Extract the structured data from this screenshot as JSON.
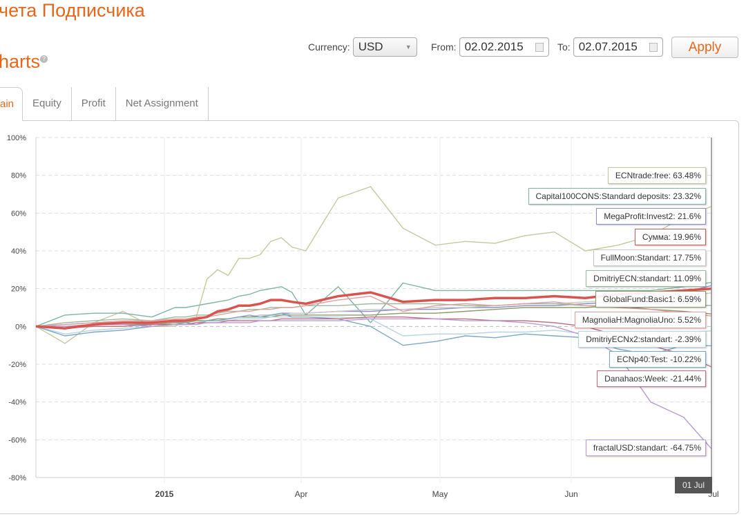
{
  "header": {
    "title": "чета Подписчика",
    "subtitle": "harts",
    "help_icon": "?"
  },
  "controls": {
    "currency_label": "Currency:",
    "currency_value": "USD",
    "from_label": "From:",
    "from_value": "02.02.2015",
    "to_label": "To:",
    "to_value": "02.07.2015",
    "apply_label": "Apply"
  },
  "tabs": [
    {
      "label": "ain",
      "active": true
    },
    {
      "label": "Equity"
    },
    {
      "label": "Profit"
    },
    {
      "label": "Net Assignment"
    }
  ],
  "tooltip": {
    "date": "01 Jul"
  },
  "colors": {
    "accent": "#e8661a"
  },
  "chart_data": {
    "type": "line",
    "ylim": [
      -80,
      100
    ],
    "y_ticks": [
      "100%",
      "80%",
      "60%",
      "40%",
      "20%",
      "0%",
      "-20%",
      "-40%",
      "-60%",
      "-80%"
    ],
    "x_ticks": [
      "2015",
      "Apr",
      "May",
      "Jun",
      "Jul"
    ],
    "grid": true,
    "legend_placement": "right",
    "x": [
      "2014-12-01",
      "2014-12-08",
      "2014-12-15",
      "2014-12-22",
      "2014-12-29",
      "2015-01-08",
      "2015-01-15",
      "2015-01-22",
      "2015-01-29",
      "2015-02-05",
      "2015-02-12",
      "2015-02-19",
      "2015-02-26",
      "2015-03-05",
      "2015-03-12",
      "2015-03-19",
      "2015-03-26",
      "2015-04-02",
      "2015-04-09",
      "2015-04-16",
      "2015-04-23",
      "2015-04-30",
      "2015-05-07",
      "2015-05-14",
      "2015-05-21",
      "2015-05-28",
      "2015-06-04",
      "2015-06-11",
      "2015-06-18",
      "2015-06-25",
      "2015-07-01"
    ],
    "series": [
      {
        "name": "ECNtrade:free",
        "label": "ECNtrade:free: 63.48%",
        "color": "#c5c79f",
        "values": [
          0,
          -9,
          2,
          8,
          0,
          0,
          3,
          5,
          25,
          30,
          27,
          36,
          36,
          38,
          45,
          47,
          42,
          40,
          68,
          74,
          52,
          43,
          45,
          44,
          48,
          50,
          40,
          43,
          48,
          58,
          63.48
        ]
      },
      {
        "name": "Capital100CONS:Standard deposits",
        "label": "Capital100CONS:Standard deposits: 23.32%",
        "color": "#7fb3a6",
        "values": [
          0,
          6,
          7,
          7,
          5,
          10,
          10,
          11,
          12,
          13,
          14,
          16,
          17,
          19,
          20,
          21,
          18,
          6,
          21,
          2,
          23,
          19,
          19,
          19,
          19,
          19,
          19,
          19,
          19,
          21,
          23.32
        ]
      },
      {
        "name": "MegaProfit:Invest2",
        "label": "MegaProfit:Invest2: 21.6%",
        "color": "#8a8ec7",
        "values": [
          0,
          1,
          2,
          2,
          1,
          2,
          3,
          3,
          3,
          4,
          4,
          5,
          5,
          6,
          6,
          7,
          7,
          7,
          8,
          8,
          9,
          9,
          10,
          10,
          11,
          11,
          12,
          13,
          15,
          18,
          21.6
        ]
      },
      {
        "name": "Сумма",
        "label": "Сумма: 19.96%",
        "color": "#d9534f",
        "bold": true,
        "values": [
          0,
          -1,
          1,
          2,
          2,
          3,
          3,
          4,
          5,
          8,
          9,
          11,
          11,
          12,
          14,
          14,
          13,
          12,
          16,
          18,
          13,
          14,
          14,
          15,
          15,
          16,
          15,
          17,
          18,
          19,
          19.96
        ]
      },
      {
        "name": "FullMoon:Standart",
        "label": "FullMoon:Standart: 17.75%",
        "color": "#c8c8c8",
        "values": [
          0,
          0,
          1,
          1,
          1,
          2,
          2,
          3,
          3,
          4,
          4,
          5,
          5,
          6,
          6,
          6,
          7,
          7,
          8,
          9,
          9,
          10,
          10,
          11,
          12,
          12,
          13,
          14,
          15,
          16,
          17.75
        ]
      },
      {
        "name": "DmitriyECN:standart",
        "label": "DmitriyECN:standart: 11.09%",
        "color": "#9bbaa0",
        "values": [
          0,
          2,
          3,
          4,
          3,
          5,
          5,
          6,
          6,
          7,
          8,
          8,
          9,
          9,
          10,
          10,
          10,
          11,
          11,
          12,
          12,
          12,
          11,
          11,
          12,
          12,
          11,
          11,
          12,
          11,
          11.09
        ]
      },
      {
        "name": "GlobalFund:Basic1",
        "label": "GlobalFund:Basic1: 6.59%",
        "color": "#8a9a6a",
        "values": [
          0,
          0,
          1,
          1,
          1,
          2,
          2,
          3,
          3,
          4,
          4,
          5,
          5,
          5,
          5,
          6,
          6,
          6,
          6,
          6,
          7,
          7,
          8,
          9,
          10,
          10,
          10,
          11,
          9,
          8,
          6.59
        ]
      },
      {
        "name": "MagnoliaH:MagnoliaUno",
        "label": "MagnoliaH:MagnoliaUno: 5.52%",
        "color": "#e0a0a0",
        "values": [
          0,
          1,
          2,
          3,
          3,
          4,
          4,
          5,
          5,
          6,
          7,
          8,
          8,
          9,
          9,
          10,
          10,
          11,
          14,
          16,
          8,
          11,
          12,
          11,
          12,
          13,
          11,
          10,
          9,
          7,
          5.52
        ]
      },
      {
        "name": "DmitriyECNx2:standart",
        "label": "DmitriyECNx2:standart: -2.39%",
        "color": "#b8d4e0",
        "values": [
          0,
          -4,
          -2,
          -1,
          0,
          1,
          1,
          2,
          3,
          3,
          3,
          4,
          4,
          4,
          5,
          5,
          5,
          5,
          5,
          4,
          -5,
          -4,
          -4,
          -3,
          -3,
          -2,
          -4,
          -5,
          -4,
          -3,
          -2.39
        ]
      },
      {
        "name": "ECNp40:Test",
        "label": "ECNp40:Test: -10.22%",
        "color": "#7ba7c7",
        "values": [
          0,
          -5,
          -3,
          -2,
          0,
          1,
          2,
          1,
          3,
          3,
          4,
          5,
          6,
          5,
          6,
          7,
          5,
          5,
          4,
          0,
          -10,
          -8,
          -5,
          -6,
          -4,
          -5,
          -6,
          -12,
          -15,
          -10,
          -10.22
        ]
      },
      {
        "name": "Danahaos:Week",
        "label": "Danahaos:Week: -21.44%",
        "color": "#c06a7a",
        "values": [
          0,
          -1,
          0,
          0,
          1,
          1,
          1,
          2,
          2,
          2,
          3,
          3,
          3,
          3,
          3,
          4,
          4,
          4,
          4,
          5,
          5,
          4,
          4,
          3,
          3,
          2,
          0,
          -5,
          -10,
          -15,
          -21.44
        ]
      },
      {
        "name": "fractalUSD:standart",
        "label": "fractalUSD:standart: -64.75%",
        "color": "#b79ad6",
        "values": [
          0,
          0,
          1,
          1,
          0,
          1,
          1,
          1,
          2,
          2,
          2,
          2,
          2,
          3,
          3,
          3,
          3,
          3,
          3,
          4,
          4,
          4,
          3,
          3,
          2,
          0,
          -5,
          -15,
          -40,
          -48,
          -64.75
        ]
      }
    ]
  }
}
